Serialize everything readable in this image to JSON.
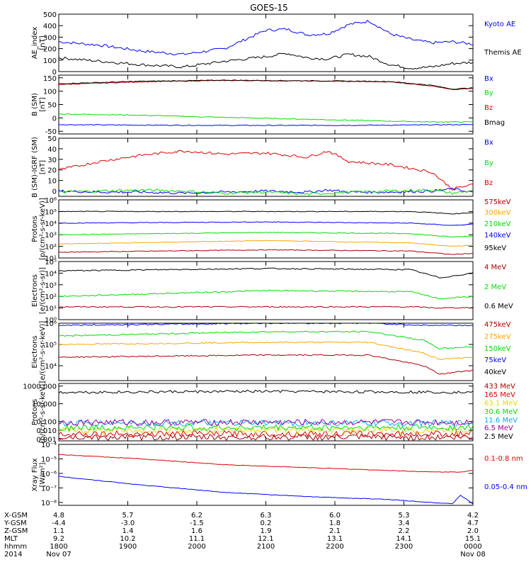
{
  "title": "GOES-15",
  "colors": {
    "black": "#000000",
    "blue": "#0000ff",
    "red": "#dd0000",
    "green": "#00dd00",
    "darkred": "#aa0000",
    "orange": "#ffa500",
    "cyan": "#00aaff",
    "yellow": "#dddd00",
    "purple": "#990099"
  },
  "chart_data": [
    {
      "type": "line",
      "panel": "ae",
      "ylabel": "AE_index\n[nT]",
      "ylim": [
        0,
        500
      ],
      "log": false,
      "yticks": [
        "500",
        "400",
        "300",
        "200",
        "100",
        "0"
      ],
      "ytick_values": [
        500,
        400,
        300,
        200,
        100,
        0
      ],
      "x": [
        0,
        0.1,
        0.2,
        0.3,
        0.4,
        0.5,
        0.55,
        0.6,
        0.65,
        0.7,
        0.75,
        0.8,
        0.85,
        0.9,
        0.95,
        1.0
      ],
      "series": [
        {
          "name": "Kyoto AE",
          "color": "blue",
          "values": [
            260,
            230,
            180,
            150,
            200,
            360,
            370,
            320,
            330,
            410,
            440,
            330,
            280,
            250,
            260,
            240
          ]
        },
        {
          "name": "Themis AE",
          "color": "black",
          "values": [
            120,
            90,
            60,
            40,
            90,
            130,
            160,
            120,
            110,
            150,
            130,
            60,
            30,
            40,
            70,
            80
          ]
        }
      ]
    },
    {
      "type": "line",
      "panel": "b_sm",
      "ylabel": "B (SM)\n[nT]",
      "ylim": [
        -60,
        160
      ],
      "log": false,
      "yticks": [
        "150",
        "100",
        "50",
        "0",
        "-50"
      ],
      "ytick_values": [
        150,
        100,
        50,
        0,
        -50
      ],
      "x": [
        0,
        0.2,
        0.4,
        0.6,
        0.8,
        0.9,
        0.95,
        1.0
      ],
      "series": [
        {
          "name": "Bx",
          "color": "blue",
          "values": [
            -25,
            -27,
            -28,
            -28,
            -27,
            -26,
            -25,
            -25
          ]
        },
        {
          "name": "By",
          "color": "green",
          "values": [
            15,
            10,
            2,
            -5,
            -12,
            -15,
            -15,
            -15
          ]
        },
        {
          "name": "Bz",
          "color": "red",
          "values": [
            125,
            135,
            140,
            138,
            135,
            120,
            105,
            110
          ]
        },
        {
          "name": "Bmag",
          "color": "black",
          "values": [
            128,
            137,
            141,
            139,
            136,
            122,
            108,
            112
          ]
        }
      ]
    },
    {
      "type": "line",
      "panel": "b_igrf",
      "ylabel": "B (SM)-IGRF (SM)\n[nT]",
      "ylim": [
        -5,
        50
      ],
      "log": false,
      "yticks": [
        "50",
        "40",
        "30",
        "20",
        "10",
        "0"
      ],
      "ytick_values": [
        50,
        40,
        30,
        20,
        10,
        0
      ],
      "x": [
        0,
        0.1,
        0.2,
        0.3,
        0.4,
        0.5,
        0.6,
        0.65,
        0.7,
        0.8,
        0.9,
        0.95,
        1.0
      ],
      "series": [
        {
          "name": "Bx",
          "color": "blue",
          "values": [
            0,
            -1,
            -1,
            -2,
            -1,
            0,
            -1,
            1,
            -1,
            -1,
            0,
            2,
            -1
          ]
        },
        {
          "name": "By",
          "color": "green",
          "values": [
            -1,
            0,
            1,
            0,
            -2,
            -1,
            -3,
            -2,
            -1,
            0,
            1,
            -2,
            0
          ]
        },
        {
          "name": "Bz",
          "color": "red",
          "values": [
            20,
            28,
            34,
            38,
            35,
            36,
            32,
            38,
            28,
            25,
            18,
            2,
            6
          ]
        }
      ]
    },
    {
      "type": "line",
      "panel": "protons",
      "ylabel": "Protons\n[p/(cm²-s-sr-keV)]",
      "ylim": [
        1,
        6
      ],
      "log": true,
      "yticks": [
        "10⁶",
        "10⁵",
        "10⁴",
        "10³",
        "10²",
        "10¹"
      ],
      "ytick_values": [
        6,
        5,
        4,
        3,
        2,
        1
      ],
      "x": [
        0,
        0.5,
        0.85,
        0.95,
        1.0
      ],
      "series": [
        {
          "name": "575keV",
          "color": "darkred",
          "values": [
            1.5,
            1.7,
            1.6,
            1.3,
            1.4
          ]
        },
        {
          "name": "300keV",
          "color": "orange",
          "values": [
            2.2,
            2.5,
            2.3,
            2.0,
            2.1
          ]
        },
        {
          "name": "210keV",
          "color": "green",
          "values": [
            3.0,
            3.2,
            3.1,
            2.8,
            2.9
          ]
        },
        {
          "name": "140keV",
          "color": "blue",
          "values": [
            4.0,
            4.1,
            4.0,
            3.8,
            3.9
          ]
        },
        {
          "name": "95keV",
          "color": "black",
          "values": [
            5.0,
            5.0,
            5.0,
            4.8,
            4.9
          ]
        }
      ]
    },
    {
      "type": "line",
      "panel": "electrons_hi",
      "ylabel": "Electrons\n[e/(cm²-s-sr)]",
      "ylim": [
        0,
        5
      ],
      "log": true,
      "yticks": [
        "10⁵",
        "10⁴",
        "10³",
        "10²",
        "10¹",
        "10⁰"
      ],
      "ytick_values": [
        5,
        4,
        3,
        2,
        1,
        0
      ],
      "x": [
        0,
        0.5,
        0.85,
        0.92,
        1.0
      ],
      "series": [
        {
          "name": "4 MeV",
          "color": "darkred",
          "values": [
            1.1,
            1.1,
            1.1,
            1.0,
            1.05
          ]
        },
        {
          "name": "2 MeV",
          "color": "green",
          "values": [
            2.0,
            2.5,
            2.4,
            1.8,
            2.0
          ]
        },
        {
          "name": "0.6 MeV",
          "color": "black",
          "values": [
            4.2,
            4.4,
            4.3,
            3.6,
            4.0
          ]
        }
      ]
    },
    {
      "type": "line",
      "panel": "electrons_lo",
      "ylabel": "Electrons\n[e/(cm²-s-sr-keV)]",
      "ylim": [
        3.3,
        6
      ],
      "log": true,
      "yticks": [
        "10⁶",
        "10⁵",
        "10⁴"
      ],
      "ytick_values": [
        6,
        5,
        4
      ],
      "x": [
        0,
        0.5,
        0.75,
        0.88,
        0.92,
        1.0
      ],
      "series": [
        {
          "name": "475keV",
          "color": "darkred",
          "values": [
            4.4,
            4.5,
            4.5,
            4.0,
            3.6,
            3.8
          ]
        },
        {
          "name": "275keV",
          "color": "orange",
          "values": [
            5.0,
            5.1,
            5.1,
            4.6,
            4.3,
            4.4
          ]
        },
        {
          "name": "150keV",
          "color": "green",
          "values": [
            5.4,
            5.6,
            5.6,
            5.2,
            4.8,
            4.9
          ]
        },
        {
          "name": "75keV",
          "color": "blue",
          "values": [
            5.9,
            6.0,
            6.0,
            5.9,
            5.9,
            5.9
          ]
        },
        {
          "name": "40keV",
          "color": "black",
          "values": [
            6.2,
            6.3,
            6.3,
            6.2,
            6.2,
            6.2
          ]
        }
      ]
    },
    {
      "type": "line",
      "panel": "protons_hi",
      "ylabel": "Protons\n[p/(cm²-s-sr-keV)]",
      "ylim": [
        -3.2,
        3.3
      ],
      "log": true,
      "yticks": [
        "1000.000",
        "10.000",
        "0.100",
        "0.010",
        "0.001"
      ],
      "ytick_values": [
        3,
        1,
        -1,
        -2,
        -3
      ],
      "x": [
        0,
        0.5,
        1.0
      ],
      "series": [
        {
          "name": "433 MeV",
          "color": "darkred",
          "values": [
            -2.8,
            -2.8,
            -2.8
          ]
        },
        {
          "name": "165 MeV",
          "color": "red",
          "values": [
            -2.4,
            -2.4,
            -2.4
          ]
        },
        {
          "name": "63.1 MeV",
          "color": "yellow",
          "values": [
            -2.0,
            -2.0,
            -2.0
          ]
        },
        {
          "name": "30.6 MeV",
          "color": "green",
          "values": [
            -1.7,
            -1.7,
            -1.7
          ]
        },
        {
          "name": "11.6 MeV",
          "color": "cyan",
          "values": [
            -1.2,
            -1.2,
            -1.2
          ]
        },
        {
          "name": "6.5 MeV",
          "color": "purple",
          "values": [
            -1.1,
            -1.1,
            -1.1
          ]
        },
        {
          "name": "2.5 MeV",
          "color": "black",
          "values": [
            2.3,
            2.4,
            2.3
          ]
        }
      ]
    },
    {
      "type": "line",
      "panel": "xray",
      "ylabel": "Xray Flux\n[W/m²]",
      "ylim": [
        -8.2,
        -4
      ],
      "log": true,
      "yticks": [
        "10⁻⁴",
        "10⁻⁵",
        "10⁻⁶",
        "10⁻⁷",
        "10⁻⁸"
      ],
      "ytick_values": [
        -4,
        -5,
        -6,
        -7,
        -8
      ],
      "x": [
        0,
        0.2,
        0.4,
        0.6,
        0.8,
        0.9,
        0.95,
        0.97,
        1.0
      ],
      "series": [
        {
          "name": "0.1-0.8 nm",
          "color": "red",
          "values": [
            -4.7,
            -5.0,
            -5.4,
            -5.6,
            -5.8,
            -5.9,
            -5.9,
            -5.9,
            -5.8
          ]
        },
        {
          "name": "0.05-0.4 nm",
          "color": "blue",
          "values": [
            -6.2,
            -6.8,
            -7.3,
            -7.6,
            -7.8,
            -8.0,
            -8.1,
            -7.5,
            -8.1
          ]
        }
      ]
    }
  ],
  "xaxis": {
    "rows": [
      "X-GSM",
      "Y-GSM",
      "Z-GSM",
      "MLT",
      "hhmm",
      "2014"
    ],
    "columns": [
      [
        "4.8",
        "-4.4",
        "1.1",
        "9.2",
        "1800",
        "Nov 07"
      ],
      [
        "5.7",
        "-3.0",
        "1.4",
        "10.2",
        "1900",
        ""
      ],
      [
        "6.2",
        "-1.5",
        "1.6",
        "11.1",
        "2000",
        ""
      ],
      [
        "6.3",
        "0.2",
        "1.9",
        "12.1",
        "2100",
        ""
      ],
      [
        "6.0",
        "1.8",
        "2.1",
        "13.1",
        "2200",
        ""
      ],
      [
        "5.3",
        "3.4",
        "2.2",
        "14.1",
        "2300",
        ""
      ],
      [
        "4.2",
        "4.7",
        "2.0",
        "15.1",
        "0000",
        "Nov 08"
      ]
    ]
  }
}
